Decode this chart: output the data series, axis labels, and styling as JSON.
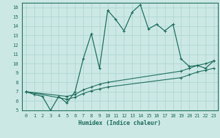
{
  "xlabel": "Humidex (Indice chaleur)",
  "ylabel": "",
  "xlim": [
    -0.5,
    23.5
  ],
  "ylim": [
    5,
    16.5
  ],
  "xticks": [
    0,
    1,
    2,
    3,
    4,
    5,
    6,
    7,
    8,
    9,
    10,
    11,
    12,
    13,
    14,
    15,
    16,
    17,
    18,
    19,
    20,
    21,
    22,
    23
  ],
  "yticks": [
    5,
    6,
    7,
    8,
    9,
    10,
    11,
    12,
    13,
    14,
    15,
    16
  ],
  "bg_color": "#cce8e5",
  "grid_color": "#b0d8d4",
  "line_color": "#1a6b5a",
  "line1_x": [
    0,
    1,
    2,
    3,
    4,
    5,
    6,
    7,
    8,
    9,
    10,
    11,
    12,
    13,
    14,
    15,
    16,
    17,
    18,
    19,
    20,
    21,
    22,
    23
  ],
  "line1_y": [
    7.0,
    6.7,
    6.5,
    5.0,
    6.5,
    5.8,
    7.0,
    10.5,
    13.2,
    9.5,
    15.7,
    14.7,
    13.5,
    15.5,
    16.3,
    13.7,
    14.2,
    13.5,
    14.2,
    10.5,
    9.7,
    9.8,
    9.5,
    10.3
  ],
  "line2_x": [
    0,
    5,
    6,
    7,
    8,
    9,
    10,
    19,
    20,
    21,
    22,
    23
  ],
  "line2_y": [
    7.0,
    6.5,
    6.7,
    7.2,
    7.5,
    7.8,
    8.0,
    9.2,
    9.5,
    9.8,
    10.0,
    10.3
  ],
  "line3_x": [
    0,
    5,
    6,
    7,
    8,
    9,
    10,
    19,
    20,
    21,
    22,
    23
  ],
  "line3_y": [
    7.0,
    6.2,
    6.4,
    6.8,
    7.1,
    7.3,
    7.5,
    8.5,
    8.8,
    9.1,
    9.3,
    9.5
  ],
  "marker": "+"
}
